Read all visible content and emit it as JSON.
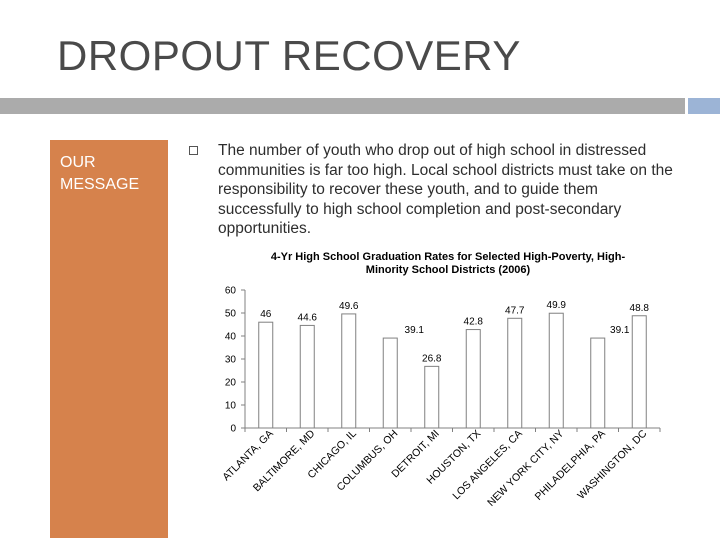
{
  "slide": {
    "title": "DROPOUT RECOVERY",
    "side_label": "OUR MESSAGE",
    "body": "The number of youth who drop out of high school in distressed communities is far too high. Local school districts must take on the responsibility to recover these youth, and to guide them successfully to high school completion and post-secondary opportunities."
  },
  "colors": {
    "accent_orange": "#d6824c",
    "bar_fill": "#ffffff",
    "bar_stroke": "#808080"
  },
  "chart_data": {
    "type": "bar",
    "title_lines": [
      "4-Yr High School Graduation Rates for Selected High-Poverty, High-",
      "Minority School Districts (2006)"
    ],
    "categories": [
      "ATLANTA, GA",
      "BALTIMORE, MD",
      "CHICAGO, IL",
      "COLUMBUS, OH",
      "DETROIT, MI",
      "HOUSTON, TX",
      "LOS ANGELES, CA",
      "NEW YORK CITY, NY",
      "PHILADELPHIA, PA",
      "WASHINGTON, DC"
    ],
    "values": [
      46,
      44.6,
      49.6,
      39.1,
      26.8,
      42.8,
      47.7,
      49.9,
      39.1,
      48.8
    ],
    "ylim": [
      0,
      60
    ],
    "yticks": [
      0,
      10,
      20,
      30,
      40,
      50,
      60
    ],
    "grid": false
  }
}
